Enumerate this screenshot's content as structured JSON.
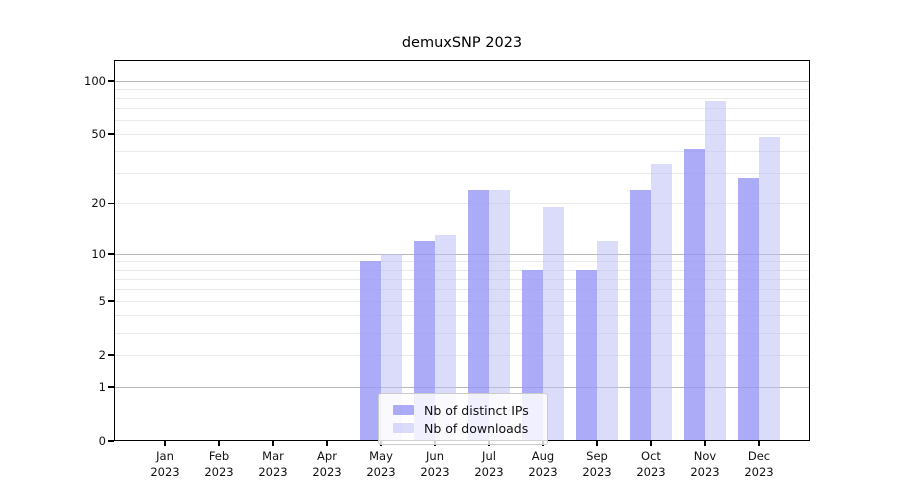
{
  "chart_data": {
    "type": "bar",
    "title": "demuxSNP 2023",
    "year_label": "2023",
    "categories": [
      "Jan",
      "Feb",
      "Mar",
      "Apr",
      "May",
      "Jun",
      "Jul",
      "Aug",
      "Sep",
      "Oct",
      "Nov",
      "Dec"
    ],
    "series": [
      {
        "name": "Nb of distinct IPs",
        "color": "rgba(150,150,245,0.8)",
        "values": [
          0,
          0,
          0,
          0,
          9,
          12,
          24,
          8,
          8,
          24,
          41,
          28
        ]
      },
      {
        "name": "Nb of downloads",
        "color": "rgba(190,190,245,0.55)",
        "values": [
          0,
          0,
          0,
          0,
          10,
          13,
          24,
          19,
          12,
          34,
          77,
          48
        ]
      }
    ],
    "ylabel": "",
    "xlabel": "",
    "scale": "log10(1+x)",
    "ylim": [
      0,
      130
    ],
    "ytick_values": [
      0,
      1,
      2,
      5,
      10,
      20,
      50,
      100
    ],
    "major_gridlines": [
      1,
      10,
      100
    ],
    "minor_gridlines": [
      2,
      3,
      4,
      5,
      6,
      7,
      8,
      9,
      20,
      30,
      40,
      50,
      60,
      70,
      80,
      90
    ],
    "grid": "on",
    "legend_position": "inside bottom, left-of-center"
  },
  "legend": {
    "entries": [
      {
        "label": "Nb of distinct IPs"
      },
      {
        "label": "Nb of downloads"
      }
    ]
  },
  "colors": {
    "distinct_ips_bar": "rgba(150,150,245,0.8)",
    "downloads_bar": "rgba(190,190,245,0.55)",
    "major_grid": "#b8b8b8",
    "minor_grid": "#e9e9e9",
    "axis": "#000000",
    "background": "#ffffff"
  }
}
